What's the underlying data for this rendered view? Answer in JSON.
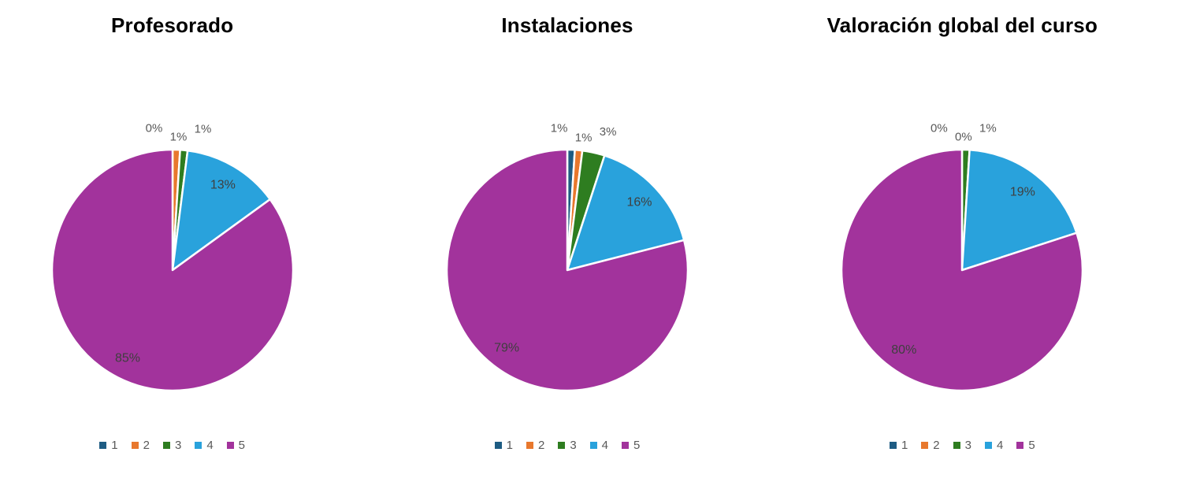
{
  "page": {
    "background_color": "#ffffff"
  },
  "styles": {
    "title_color": "#000000",
    "inside_label_color": "#3f3f3f",
    "outside_label_color": "#595959",
    "legend_text_color": "#595959",
    "slice_border_color": "#ffffff"
  },
  "chart_data": [
    {
      "type": "pie",
      "title": "Profesorado",
      "categories": [
        "1",
        "2",
        "3",
        "4",
        "5"
      ],
      "values": [
        0,
        1,
        1,
        13,
        85
      ],
      "labels": [
        "0%",
        "1%",
        "1%",
        "13%",
        "85%"
      ],
      "colors": [
        "#1E5C83",
        "#E8782D",
        "#2E7D20",
        "#29A2DC",
        "#A2339C"
      ],
      "legend_position": "bottom",
      "start_angle_deg": 0,
      "direction": "clockwise"
    },
    {
      "type": "pie",
      "title": "Instalaciones",
      "categories": [
        "1",
        "2",
        "3",
        "4",
        "5"
      ],
      "values": [
        1,
        1,
        3,
        16,
        79
      ],
      "labels": [
        "1%",
        "1%",
        "3%",
        "16%",
        "79%"
      ],
      "colors": [
        "#1E5C83",
        "#E8782D",
        "#2E7D20",
        "#29A2DC",
        "#A2339C"
      ],
      "legend_position": "bottom",
      "start_angle_deg": 0,
      "direction": "clockwise"
    },
    {
      "type": "pie",
      "title": "Valoración global del curso",
      "categories": [
        "1",
        "2",
        "3",
        "4",
        "5"
      ],
      "values": [
        0,
        0,
        1,
        19,
        80
      ],
      "labels": [
        "0%",
        "0%",
        "1%",
        "19%",
        "80%"
      ],
      "colors": [
        "#1E5C83",
        "#E8782D",
        "#2E7D20",
        "#29A2DC",
        "#A2339C"
      ],
      "legend_position": "bottom",
      "start_angle_deg": 0,
      "direction": "clockwise"
    }
  ]
}
